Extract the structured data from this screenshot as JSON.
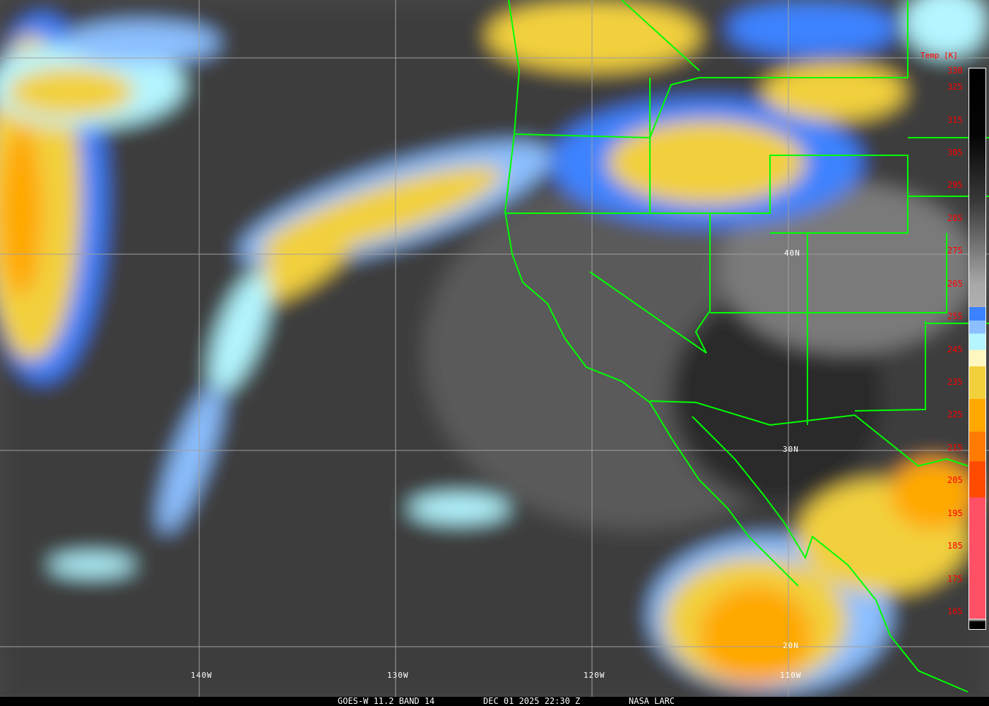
{
  "caption": {
    "product": "GOES-W 11.2 BAND 14",
    "datetime": "DEC 01 2025 22:30 Z",
    "source": "NASA LARC"
  },
  "legend": {
    "title": "Temp [K]",
    "ticks": [
      "330",
      "325",
      "315",
      "305",
      "295",
      "285",
      "275",
      "265",
      "255",
      "245",
      "235",
      "225",
      "215",
      "205",
      "195",
      "185",
      "175",
      "165"
    ],
    "stops": [
      {
        "k": 330,
        "color": "#000000"
      },
      {
        "k": 310,
        "color": "#050505"
      },
      {
        "k": 290,
        "color": "#3a3a3a"
      },
      {
        "k": 265,
        "color": "#a8a8a8"
      },
      {
        "k": 258,
        "color": "#b0b0b0"
      },
      {
        "k": 258,
        "color": "#3c82ff"
      },
      {
        "k": 254,
        "color": "#3c82ff"
      },
      {
        "k": 254,
        "color": "#8cbfff"
      },
      {
        "k": 250,
        "color": "#8cbfff"
      },
      {
        "k": 250,
        "color": "#b4f5ff"
      },
      {
        "k": 245,
        "color": "#b4f5ff"
      },
      {
        "k": 245,
        "color": "#fff7c0"
      },
      {
        "k": 240,
        "color": "#fff7c0"
      },
      {
        "k": 240,
        "color": "#f2d03c"
      },
      {
        "k": 230,
        "color": "#f2d03c"
      },
      {
        "k": 230,
        "color": "#ffa800"
      },
      {
        "k": 220,
        "color": "#ffa800"
      },
      {
        "k": 220,
        "color": "#ff7a00"
      },
      {
        "k": 211,
        "color": "#ff7a00"
      },
      {
        "k": 211,
        "color": "#ff4a00"
      },
      {
        "k": 200,
        "color": "#ff4a00"
      },
      {
        "k": 200,
        "color": "#ff5066"
      },
      {
        "k": 163,
        "color": "#ff5066"
      },
      {
        "k": 163,
        "color": "#ffffff"
      },
      {
        "k": 162,
        "color": "#000000"
      }
    ]
  },
  "longitudes": [
    "140W",
    "130W",
    "120W",
    "110W"
  ],
  "latitudes": [
    "40N",
    "30N",
    "20N"
  ],
  "colors": {
    "boundaries": "#00ff00",
    "grid": "#a0a0a0",
    "labels": "#ffffff",
    "legend_text": "#ff0000"
  }
}
